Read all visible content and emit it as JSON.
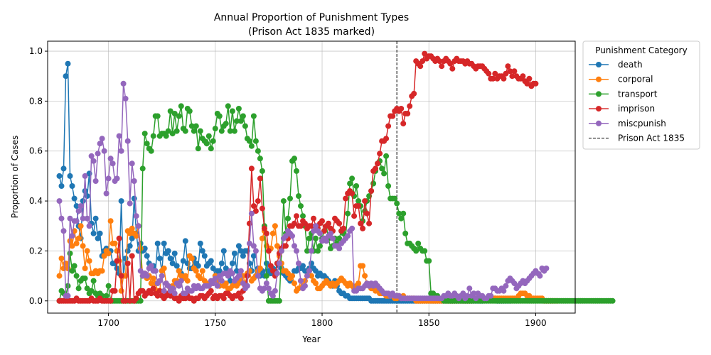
{
  "chart_data": {
    "type": "line",
    "title": "Annual Proportion of Punishment Types",
    "subtitle": "(Prison Act 1835 marked)",
    "xlabel": "Year",
    "ylabel": "Proportion of Cases",
    "xlim": [
      1671.5,
      1918.5
    ],
    "ylim": [
      -0.049,
      1.04
    ],
    "xticks": [
      1700,
      1750,
      1800,
      1850,
      1900
    ],
    "yticks": [
      0.0,
      0.2,
      0.4,
      0.6,
      0.8,
      1.0
    ],
    "xtick_labels": [
      "1700",
      "1750",
      "1800",
      "1850",
      "1900"
    ],
    "ytick_labels": [
      "0.0",
      "0.2",
      "0.4",
      "0.6",
      "0.8",
      "1.0"
    ],
    "grid": true,
    "legend": {
      "title": "Punishment Category",
      "placement": "outside-top-right"
    },
    "reference_line": {
      "x": 1835,
      "label": "Prison Act 1835",
      "style": "dashed",
      "color": "#000000"
    },
    "x_start": 1677,
    "series": [
      {
        "name": "death",
        "color": "#1f77b4",
        "values": [
          0.5,
          0.46,
          0.53,
          0.9,
          0.95,
          0.5,
          0.46,
          0.41,
          0.38,
          0.3,
          0.25,
          0.4,
          0.44,
          0.42,
          0.51,
          0.31,
          0.27,
          0.33,
          0.25,
          0.27,
          0.18,
          0.2,
          0.21,
          0.19,
          0.2,
          0.15,
          0.15,
          0.13,
          0.11,
          0.4,
          0.1,
          0.17,
          0.2,
          0.22,
          0.25,
          0.41,
          0.27,
          0.2,
          0.23,
          0.2,
          0.21,
          0.18,
          0.15,
          0.14,
          0.14,
          0.12,
          0.23,
          0.17,
          0.12,
          0.23,
          0.19,
          0.2,
          0.17,
          0.15,
          0.19,
          0.14,
          0.12,
          0.11,
          0.16,
          0.24,
          0.15,
          0.13,
          0.13,
          0.17,
          0.15,
          0.14,
          0.23,
          0.2,
          0.18,
          0.14,
          0.15,
          0.16,
          0.13,
          0.1,
          0.12,
          0.12,
          0.15,
          0.2,
          0.13,
          0.1,
          0.08,
          0.15,
          0.19,
          0.12,
          0.22,
          0.2,
          0.18,
          0.2,
          0.2,
          0.15,
          0.12,
          0.18,
          0.1,
          0.13,
          0.1,
          0.12,
          0.1,
          0.15,
          0.12,
          0.11,
          0.13,
          0.12,
          0.15,
          0.14,
          0.13,
          0.11,
          0.1,
          0.09,
          0.08,
          0.1,
          0.12,
          0.12,
          0.13,
          0.13,
          0.14,
          0.12,
          0.12,
          0.13,
          0.15,
          0.13,
          0.12,
          0.1,
          0.11,
          0.1,
          0.1,
          0.09,
          0.08,
          0.07,
          0.06,
          0.08,
          0.06,
          0.04,
          0.03,
          0.03,
          0.02,
          0.02,
          0.01,
          0.01,
          0.01,
          0.01,
          0.01,
          0.01,
          0.01,
          0.01,
          0.01,
          0.01,
          0.0,
          0.0,
          0.0,
          0.0,
          0.0,
          0.0,
          0.0,
          0.0,
          0.0,
          0.0,
          0.0,
          0.0,
          0.0,
          0.0,
          0.0,
          0.0,
          0.0,
          0.0,
          0.0,
          0.0,
          0.0,
          0.0,
          0.0,
          0.0,
          0.0,
          0.0,
          0.0,
          0.0,
          0.0,
          0.0,
          0.0,
          0.0,
          0.0,
          0.0,
          0.0,
          0.0,
          0.0,
          0.0,
          0.0,
          0.0,
          0.0,
          0.0,
          0.0,
          0.0,
          0.0,
          0.0,
          0.0,
          0.0,
          0.0,
          0.0,
          0.0,
          0.0,
          0.0,
          0.01,
          0.01,
          0.01,
          0.01,
          0.01,
          0.01,
          0.0,
          0.0,
          0.0,
          0.0,
          0.0,
          0.0,
          0.0
        ]
      },
      {
        "name": "corporal",
        "color": "#ff7f0e",
        "values": [
          0.1,
          0.17,
          0.13,
          0.15,
          0.13,
          0.24,
          0.22,
          0.28,
          0.23,
          0.25,
          0.3,
          0.22,
          0.13,
          0.2,
          0.16,
          0.11,
          0.11,
          0.12,
          0.11,
          0.12,
          0.12,
          0.18,
          0.2,
          0.19,
          0.32,
          0.23,
          0.23,
          0.2,
          0.16,
          0.04,
          0.1,
          0.1,
          0.28,
          0.27,
          0.29,
          0.27,
          0.26,
          0.3,
          0.21,
          0.1,
          0.11,
          0.09,
          0.1,
          0.07,
          0.09,
          0.07,
          0.04,
          0.04,
          0.12,
          0.13,
          0.07,
          0.06,
          0.05,
          0.06,
          0.08,
          0.08,
          0.12,
          0.1,
          0.09,
          0.1,
          0.08,
          0.18,
          0.17,
          0.13,
          0.12,
          0.1,
          0.09,
          0.12,
          0.08,
          0.07,
          0.06,
          0.07,
          0.08,
          0.1,
          0.08,
          0.06,
          0.08,
          0.06,
          0.07,
          0.05,
          0.05,
          0.06,
          0.07,
          0.06,
          0.07,
          0.08,
          0.1,
          0.07,
          0.11,
          0.12,
          0.08,
          0.09,
          0.1,
          0.12,
          0.13,
          0.25,
          0.28,
          0.22,
          0.2,
          0.21,
          0.27,
          0.3,
          0.22,
          0.18,
          0.15,
          0.12,
          0.12,
          0.11,
          0.09,
          0.1,
          0.07,
          0.04,
          0.05,
          0.08,
          0.06,
          0.08,
          0.1,
          0.12,
          0.1,
          0.08,
          0.07,
          0.05,
          0.05,
          0.06,
          0.07,
          0.08,
          0.07,
          0.06,
          0.07,
          0.06,
          0.07,
          0.08,
          0.09,
          0.08,
          0.07,
          0.06,
          0.07,
          0.06,
          0.05,
          0.06,
          0.07,
          0.14,
          0.14,
          0.1,
          0.07,
          0.06,
          0.05,
          0.05,
          0.04,
          0.04,
          0.03,
          0.03,
          0.03,
          0.02,
          0.02,
          0.02,
          0.02,
          0.01,
          0.01,
          0.02,
          0.01,
          0.02,
          0.01,
          0.01,
          0.01,
          0.01,
          0.01,
          0.0,
          0.0,
          0.0,
          0.0,
          0.0,
          0.0,
          0.0,
          0.0,
          0.0,
          0.0,
          0.0,
          0.0,
          0.0,
          0.0,
          0.0,
          0.0,
          0.0,
          0.0,
          0.0,
          0.0,
          0.0,
          0.0,
          0.0,
          0.0,
          0.0,
          0.0,
          0.0,
          0.01,
          0.01,
          0.01,
          0.01,
          0.01,
          0.01,
          0.01,
          0.01,
          0.01,
          0.01,
          0.01,
          0.01,
          0.01,
          0.01,
          0.01,
          0.01,
          0.01,
          0.01,
          0.01,
          0.01,
          0.01,
          0.02,
          0.03,
          0.03,
          0.03,
          0.02,
          0.02,
          0.01,
          0.01,
          0.01,
          0.01,
          0.01,
          0.01,
          0.0,
          0.0,
          0.0,
          0.0,
          0.0,
          0.0,
          0.0
        ]
      },
      {
        "name": "transport",
        "color": "#2ca02c",
        "values": [
          0.0,
          0.04,
          0.03,
          0.02,
          0.06,
          0.19,
          0.12,
          0.14,
          0.1,
          0.05,
          0.08,
          0.09,
          0.09,
          0.05,
          0.03,
          0.04,
          0.08,
          0.03,
          0.02,
          0.03,
          0.02,
          0.0,
          0.02,
          0.06,
          0.0,
          0.0,
          0.0,
          0.0,
          0.0,
          0.0,
          0.0,
          0.0,
          0.0,
          0.0,
          0.0,
          0.0,
          0.0,
          0.0,
          0.0,
          0.53,
          0.67,
          0.63,
          0.61,
          0.6,
          0.66,
          0.74,
          0.74,
          0.66,
          0.67,
          0.67,
          0.66,
          0.68,
          0.76,
          0.67,
          0.75,
          0.68,
          0.74,
          0.78,
          0.69,
          0.68,
          0.77,
          0.76,
          0.7,
          0.68,
          0.7,
          0.61,
          0.68,
          0.65,
          0.64,
          0.63,
          0.66,
          0.61,
          0.64,
          0.69,
          0.75,
          0.74,
          0.68,
          0.7,
          0.71,
          0.78,
          0.68,
          0.76,
          0.68,
          0.72,
          0.77,
          0.72,
          0.74,
          0.7,
          0.65,
          0.64,
          0.62,
          0.74,
          0.64,
          0.6,
          0.57,
          0.52,
          0.3,
          0.1,
          0.0,
          0.0,
          0.0,
          0.0,
          0.0,
          0.0,
          0.2,
          0.4,
          0.27,
          0.33,
          0.41,
          0.56,
          0.57,
          0.52,
          0.42,
          0.38,
          0.34,
          0.3,
          0.2,
          0.25,
          0.27,
          0.2,
          0.25,
          0.2,
          0.22,
          0.25,
          0.28,
          0.3,
          0.25,
          0.21,
          0.22,
          0.25,
          0.23,
          0.25,
          0.28,
          0.27,
          0.26,
          0.35,
          0.47,
          0.49,
          0.42,
          0.46,
          0.4,
          0.38,
          0.32,
          0.36,
          0.4,
          0.42,
          0.44,
          0.47,
          0.52,
          0.55,
          0.56,
          0.53,
          0.51,
          0.58,
          0.46,
          0.41,
          0.41,
          0.41,
          0.39,
          0.35,
          0.33,
          0.35,
          0.27,
          0.23,
          0.23,
          0.22,
          0.21,
          0.2,
          0.23,
          0.21,
          0.2,
          0.2,
          0.16,
          0.16,
          0.03,
          0.03,
          0.02,
          0.02,
          0.01,
          0.01,
          0.0,
          0.0,
          0.0,
          0.0,
          0.0,
          0.0,
          0.0,
          0.0,
          0.0,
          0.0,
          0.0,
          0.0,
          0.0,
          0.0,
          0.0,
          0.0,
          0.0,
          0.0,
          0.0,
          0.0,
          0.0,
          0.0,
          0.0,
          0.0,
          0.0,
          0.0,
          0.0,
          0.0,
          0.0,
          0.0,
          0.0,
          0.0,
          0.0,
          0.0,
          0.0,
          0.0,
          0.0,
          0.0,
          0.0,
          0.0,
          0.0,
          0.0,
          0.0,
          0.0,
          0.0,
          0.0,
          0.0,
          0.0,
          0.0,
          0.0,
          0.0,
          0.0,
          0.0,
          0.0,
          0.0,
          0.0,
          0.0,
          0.0,
          0.0,
          0.0,
          0.0,
          0.0,
          0.0,
          0.0,
          0.0,
          0.0,
          0.0,
          0.0,
          0.0,
          0.0,
          0.0,
          0.0,
          0.0,
          0.0,
          0.0,
          0.0,
          0.0,
          0.0,
          0.0,
          0.0
        ]
      },
      {
        "name": "imprison",
        "color": "#d62728",
        "values": [
          0.0,
          0.0,
          0.0,
          0.0,
          0.0,
          0.0,
          0.0,
          0.0,
          0.01,
          0.0,
          0.0,
          0.0,
          0.0,
          0.0,
          0.0,
          0.01,
          0.0,
          0.0,
          0.0,
          0.01,
          0.0,
          0.0,
          0.0,
          0.0,
          0.0,
          0.04,
          0.04,
          0.16,
          0.25,
          0.1,
          0.0,
          0.0,
          0.15,
          0.0,
          0.18,
          0.0,
          0.01,
          0.03,
          0.04,
          0.04,
          0.02,
          0.03,
          0.04,
          0.03,
          0.05,
          0.03,
          0.02,
          0.04,
          0.02,
          0.01,
          0.02,
          0.03,
          0.02,
          0.02,
          0.01,
          0.01,
          0.0,
          0.02,
          0.01,
          0.01,
          0.02,
          0.01,
          0.01,
          0.0,
          0.01,
          0.01,
          0.02,
          0.02,
          0.01,
          0.02,
          0.03,
          0.04,
          0.01,
          0.02,
          0.01,
          0.02,
          0.02,
          0.01,
          0.03,
          0.03,
          0.02,
          0.01,
          0.02,
          0.02,
          0.03,
          0.01,
          0.04,
          0.06,
          0.1,
          0.31,
          0.53,
          0.38,
          0.36,
          0.4,
          0.49,
          0.37,
          0.29,
          0.27,
          0.2,
          0.14,
          0.12,
          0.1,
          0.15,
          0.19,
          0.21,
          0.22,
          0.22,
          0.25,
          0.3,
          0.3,
          0.31,
          0.34,
          0.3,
          0.3,
          0.32,
          0.31,
          0.29,
          0.3,
          0.3,
          0.33,
          0.3,
          0.29,
          0.31,
          0.32,
          0.28,
          0.3,
          0.31,
          0.29,
          0.28,
          0.33,
          0.32,
          0.31,
          0.28,
          0.29,
          0.41,
          0.43,
          0.44,
          0.43,
          0.34,
          0.38,
          0.38,
          0.31,
          0.29,
          0.4,
          0.35,
          0.31,
          0.44,
          0.52,
          0.53,
          0.55,
          0.59,
          0.64,
          0.64,
          0.65,
          0.7,
          0.74,
          0.74,
          0.76,
          0.77,
          0.76,
          0.77,
          0.71,
          0.75,
          0.75,
          0.78,
          0.82,
          0.83,
          0.96,
          0.95,
          0.94,
          0.96,
          0.99,
          0.97,
          0.98,
          0.98,
          0.97,
          0.96,
          0.97,
          0.96,
          0.94,
          0.96,
          0.97,
          0.96,
          0.95,
          0.93,
          0.96,
          0.97,
          0.96,
          0.96,
          0.96,
          0.95,
          0.96,
          0.95,
          0.95,
          0.94,
          0.93,
          0.94,
          0.94,
          0.94,
          0.93,
          0.92,
          0.91,
          0.89,
          0.89,
          0.91,
          0.89,
          0.9,
          0.9,
          0.89,
          0.91,
          0.94,
          0.92,
          0.9,
          0.92,
          0.9,
          0.89,
          0.89,
          0.9,
          0.88,
          0.87,
          0.89,
          0.86,
          0.87,
          0.87
        ]
      },
      {
        "name": "miscpunish",
        "color": "#9467bd",
        "values": [
          0.4,
          0.33,
          0.28,
          0.02,
          0.02,
          0.33,
          0.26,
          0.32,
          0.32,
          0.36,
          0.38,
          0.33,
          0.5,
          0.33,
          0.3,
          0.58,
          0.56,
          0.48,
          0.59,
          0.63,
          0.65,
          0.6,
          0.43,
          0.49,
          0.57,
          0.55,
          0.48,
          0.49,
          0.66,
          0.6,
          0.87,
          0.81,
          0.64,
          0.39,
          0.55,
          0.48,
          0.34,
          0.3,
          0.12,
          0.1,
          0.11,
          0.1,
          0.13,
          0.14,
          0.12,
          0.12,
          0.07,
          0.08,
          0.1,
          0.04,
          0.07,
          0.06,
          0.04,
          0.05,
          0.03,
          0.07,
          0.06,
          0.08,
          0.03,
          0.03,
          0.05,
          0.04,
          0.04,
          0.06,
          0.05,
          0.06,
          0.05,
          0.05,
          0.06,
          0.06,
          0.06,
          0.08,
          0.07,
          0.09,
          0.06,
          0.1,
          0.08,
          0.11,
          0.11,
          0.1,
          0.12,
          0.11,
          0.08,
          0.09,
          0.1,
          0.12,
          0.07,
          0.05,
          0.06,
          0.23,
          0.35,
          0.22,
          0.2,
          0.1,
          0.05,
          0.04,
          0.05,
          0.07,
          0.05,
          0.03,
          0.02,
          0.04,
          0.11,
          0.15,
          0.2,
          0.25,
          0.26,
          0.28,
          0.27,
          0.26,
          0.22,
          0.2,
          0.15,
          0.08,
          0.05,
          0.06,
          0.1,
          0.12,
          0.2,
          0.28,
          0.3,
          0.28,
          0.27,
          0.24,
          0.25,
          0.24,
          0.26,
          0.27,
          0.25,
          0.22,
          0.22,
          0.21,
          0.23,
          0.24,
          0.25,
          0.26,
          0.28,
          0.29,
          0.04,
          0.04,
          0.05,
          0.05,
          0.05,
          0.06,
          0.07,
          0.06,
          0.07,
          0.06,
          0.07,
          0.06,
          0.05,
          0.04,
          0.03,
          0.03,
          0.03,
          0.02,
          0.03,
          0.02,
          0.02,
          0.02,
          0.01,
          0.01,
          0.01,
          0.01,
          0.01,
          0.01,
          0.01,
          0.01,
          0.01,
          0.01,
          0.01,
          0.01,
          0.01,
          0.01,
          0.01,
          0.01,
          0.01,
          0.01,
          0.01,
          0.01,
          0.02,
          0.02,
          0.03,
          0.02,
          0.02,
          0.03,
          0.02,
          0.01,
          0.02,
          0.03,
          0.01,
          0.02,
          0.05,
          0.02,
          0.03,
          0.01,
          0.03,
          0.02,
          0.02,
          0.01,
          0.01,
          0.02,
          0.02,
          0.05,
          0.05,
          0.04,
          0.04,
          0.05,
          0.04,
          0.06,
          0.08,
          0.09,
          0.08,
          0.07,
          0.05,
          0.06,
          0.07,
          0.08,
          0.07,
          0.08,
          0.09,
          0.1,
          0.11,
          0.12,
          0.11,
          0.1,
          0.13,
          0.12,
          0.13
        ]
      }
    ]
  }
}
